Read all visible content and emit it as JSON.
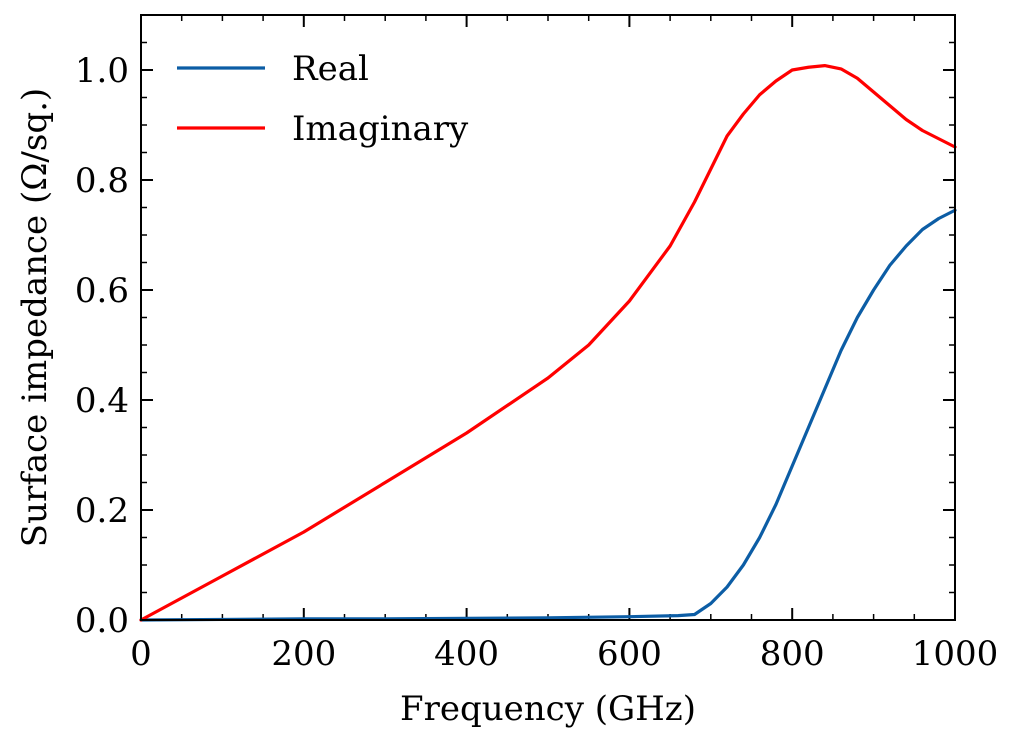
{
  "chart_data": {
    "type": "line",
    "xlabel": "Frequency (GHz)",
    "ylabel": "Surface impedance (Ω/sq.)",
    "xlim": [
      0,
      1000
    ],
    "ylim": [
      0,
      1.1
    ],
    "x_ticks": [
      0,
      200,
      400,
      600,
      800,
      1000
    ],
    "x_tick_labels": [
      "0",
      "200",
      "400",
      "600",
      "800",
      "1000"
    ],
    "y_ticks": [
      0,
      0.2,
      0.4,
      0.6,
      0.8,
      1.0
    ],
    "y_tick_labels": [
      "0.0",
      "0.2",
      "0.4",
      "0.6",
      "0.8",
      "1.0"
    ],
    "grid": false,
    "legend_position": "top-left",
    "series": [
      {
        "name": "Real",
        "color": "#0c5da5",
        "x": [
          0,
          100,
          200,
          300,
          400,
          500,
          600,
          660,
          680,
          700,
          720,
          740,
          760,
          780,
          800,
          820,
          840,
          860,
          880,
          900,
          920,
          940,
          960,
          980,
          1000
        ],
        "y": [
          0,
          0.001,
          0.002,
          0.002,
          0.003,
          0.004,
          0.006,
          0.008,
          0.01,
          0.03,
          0.06,
          0.1,
          0.15,
          0.21,
          0.28,
          0.35,
          0.42,
          0.49,
          0.55,
          0.6,
          0.645,
          0.68,
          0.71,
          0.73,
          0.745
        ]
      },
      {
        "name": "Imaginary",
        "color": "#ff0000",
        "x": [
          0,
          100,
          200,
          300,
          400,
          500,
          550,
          600,
          650,
          680,
          700,
          720,
          740,
          760,
          780,
          800,
          820,
          840,
          860,
          880,
          900,
          920,
          940,
          960,
          980,
          1000
        ],
        "y": [
          0,
          0.08,
          0.16,
          0.25,
          0.34,
          0.44,
          0.5,
          0.58,
          0.68,
          0.76,
          0.82,
          0.88,
          0.92,
          0.955,
          0.98,
          1.0,
          1.005,
          1.008,
          1.002,
          0.985,
          0.96,
          0.935,
          0.91,
          0.89,
          0.875,
          0.86
        ]
      }
    ]
  }
}
